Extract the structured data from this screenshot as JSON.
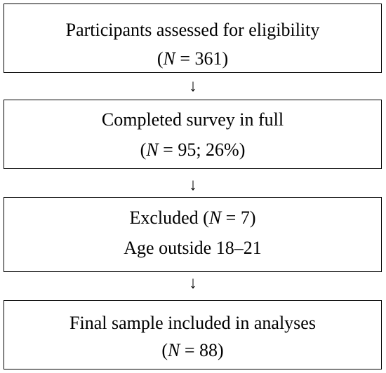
{
  "boxes": [
    {
      "line1": "Participants assessed for eligibility",
      "line2_open": "(",
      "n_symbol": "N",
      "line2_rest": " = 361)"
    },
    {
      "line1": "Completed survey in full",
      "line2_open": "(",
      "n_symbol": "N",
      "line2_rest": " = 95; 26%)"
    },
    {
      "line1_prefix": "Excluded (",
      "n_symbol": "N",
      "line1_rest": " = 7)",
      "line2": "Age outside 18–21"
    },
    {
      "line1": "Final sample included in analyses",
      "line2_open": "(",
      "n_symbol": "N",
      "line2_rest": " = 88)"
    }
  ],
  "arrows": [
    "↓",
    "↓",
    "↓"
  ]
}
